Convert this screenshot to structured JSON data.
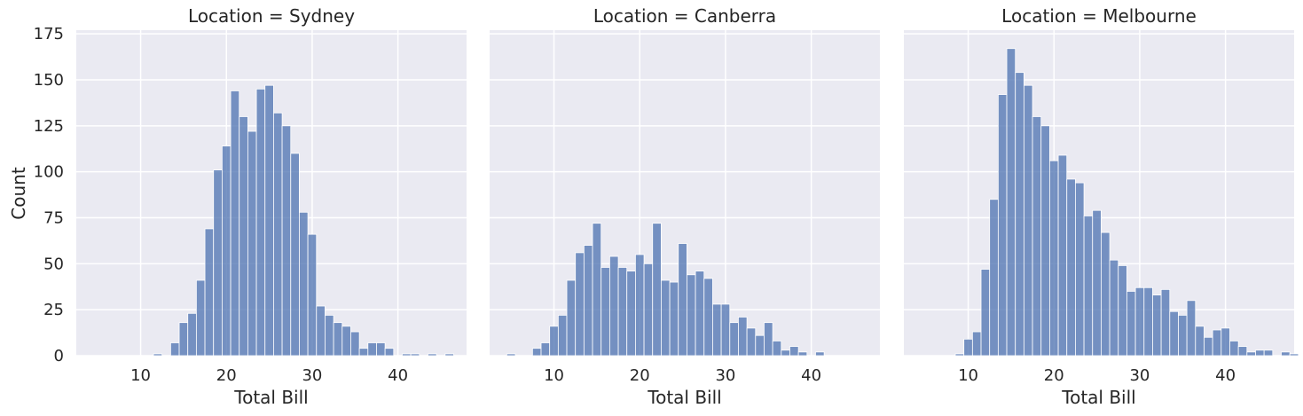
{
  "chart_data": {
    "type": "bar",
    "chart_kind": "histogram",
    "ylabel": "Count",
    "xlabel": "Total Bill",
    "xlim": [
      2.5,
      48
    ],
    "ylim": [
      0,
      177
    ],
    "xticks": [
      10,
      20,
      30,
      40
    ],
    "yticks": [
      0,
      25,
      50,
      75,
      100,
      125,
      150,
      175
    ],
    "grid": true,
    "bin_start": 3.5,
    "bin_width": 1,
    "panels": [
      {
        "title": "Location = Sydney",
        "xlabel": "Total Bill",
        "counts": [
          0,
          0,
          0,
          0,
          0,
          0,
          0,
          0,
          1,
          0,
          7,
          18,
          23,
          41,
          69,
          101,
          114,
          144,
          130,
          122,
          145,
          147,
          132,
          125,
          110,
          78,
          66,
          27,
          22,
          18,
          16,
          13,
          4,
          7,
          7,
          4,
          0,
          1,
          1,
          0,
          1,
          0,
          1
        ]
      },
      {
        "title": "Location = Canberra",
        "xlabel": "Total Bill",
        "counts": [
          0,
          1,
          0,
          0,
          4,
          7,
          16,
          22,
          41,
          56,
          60,
          72,
          48,
          54,
          48,
          46,
          55,
          50,
          72,
          41,
          40,
          61,
          44,
          46,
          42,
          28,
          28,
          18,
          21,
          15,
          11,
          18,
          8,
          3,
          5,
          2,
          0,
          2,
          0,
          0,
          0,
          0,
          0
        ]
      },
      {
        "title": "Location = Melbourne",
        "xlabel": "Total Bill",
        "counts": [
          0,
          0,
          0,
          0,
          0,
          1,
          9,
          13,
          47,
          85,
          142,
          167,
          154,
          147,
          130,
          125,
          106,
          109,
          96,
          94,
          76,
          79,
          67,
          52,
          49,
          35,
          37,
          37,
          33,
          36,
          24,
          22,
          30,
          16,
          10,
          14,
          15,
          8,
          5,
          2,
          3,
          3,
          0,
          2,
          1
        ]
      }
    ]
  }
}
